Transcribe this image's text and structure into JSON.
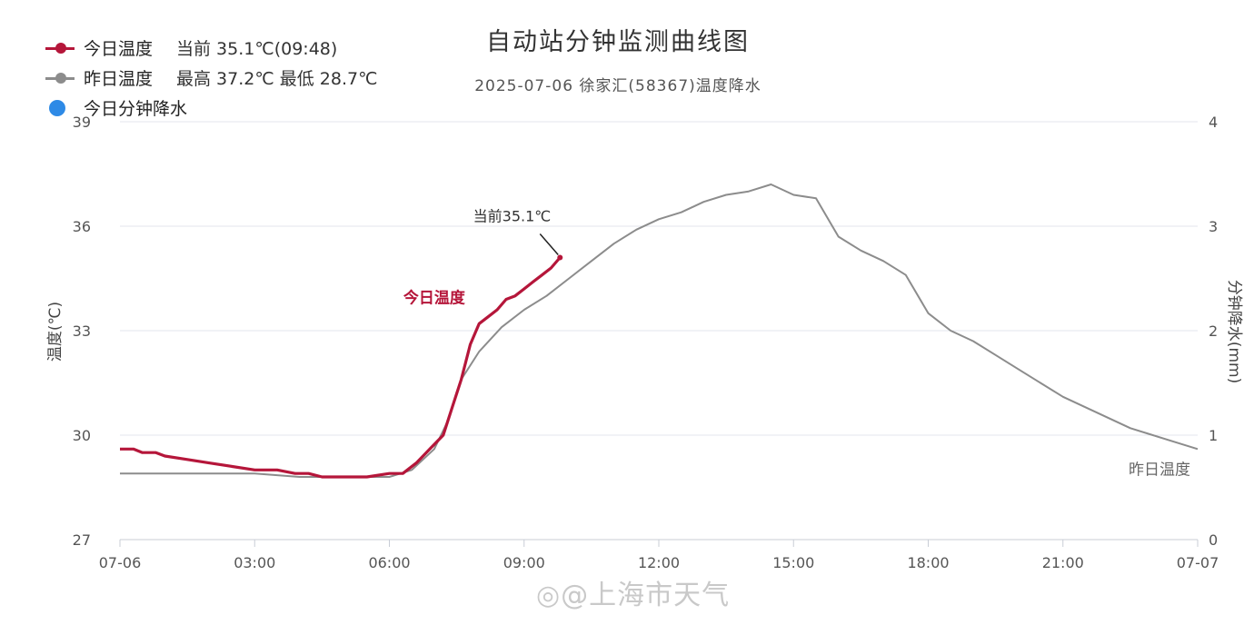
{
  "chart_data": {
    "type": "line",
    "title": "自动站分钟监测曲线图",
    "subtitle": "2025-07-06 徐家汇(58367)温度降水",
    "ylabel": "温度(℃)",
    "y2label": "分钟降水(mm)",
    "ylim": [
      27,
      39
    ],
    "y2lim": [
      0,
      4
    ],
    "yticks": [
      "27",
      "30",
      "33",
      "36",
      "39"
    ],
    "y2ticks": [
      "0",
      "1",
      "2",
      "3",
      "4"
    ],
    "xlim": [
      0,
      24
    ],
    "xticks": [
      {
        "value": 0,
        "label": "07-06"
      },
      {
        "value": 3,
        "label": "03:00"
      },
      {
        "value": 6,
        "label": "06:00"
      },
      {
        "value": 9,
        "label": "09:00"
      },
      {
        "value": 12,
        "label": "12:00"
      },
      {
        "value": 15,
        "label": "15:00"
      },
      {
        "value": 18,
        "label": "18:00"
      },
      {
        "value": 21,
        "label": "21:00"
      },
      {
        "value": 24,
        "label": "07-07"
      }
    ],
    "legend": [
      {
        "name": "今日温度",
        "extra": "当前 35.1℃(09:48)",
        "color": "#b5163a",
        "symbol": "line"
      },
      {
        "name": "昨日温度",
        "extra": "最高 37.2℃ 最低 28.7℃",
        "color": "#8c8c8c",
        "symbol": "line"
      },
      {
        "name": "今日分钟降水",
        "extra": "",
        "color": "#2e8ae6",
        "symbol": "dot"
      }
    ],
    "series": [
      {
        "name": "今日温度",
        "color": "#b5163a",
        "x": [
          0,
          0.3,
          0.5,
          0.8,
          1,
          1.5,
          2,
          2.5,
          3,
          3.5,
          3.9,
          4.2,
          4.5,
          5,
          5.5,
          6,
          6.3,
          6.6,
          6.9,
          7.2,
          7.4,
          7.6,
          7.8,
          8.0,
          8.2,
          8.4,
          8.6,
          8.8,
          9.0,
          9.2,
          9.4,
          9.6,
          9.8
        ],
        "y": [
          29.6,
          29.6,
          29.5,
          29.5,
          29.4,
          29.3,
          29.2,
          29.1,
          29.0,
          29.0,
          28.9,
          28.9,
          28.8,
          28.8,
          28.8,
          28.9,
          28.9,
          29.2,
          29.6,
          30.0,
          30.8,
          31.6,
          32.6,
          33.2,
          33.4,
          33.6,
          33.9,
          34.0,
          34.2,
          34.4,
          34.6,
          34.8,
          35.1
        ]
      },
      {
        "name": "昨日温度",
        "color": "#8c8c8c",
        "x": [
          0,
          1,
          2,
          3,
          4,
          5,
          6,
          6.5,
          7,
          7.3,
          7.6,
          8,
          8.5,
          9,
          9.5,
          10,
          10.5,
          11,
          11.5,
          12,
          12.5,
          13,
          13.5,
          14,
          14.5,
          15,
          15.5,
          16,
          16.5,
          17,
          17.5,
          18,
          18.5,
          19,
          19.5,
          20,
          20.5,
          21,
          21.5,
          22,
          22.5,
          23,
          23.5,
          24
        ],
        "y": [
          28.9,
          28.9,
          28.9,
          28.9,
          28.8,
          28.8,
          28.8,
          29.0,
          29.6,
          30.4,
          31.6,
          32.4,
          33.1,
          33.6,
          34.0,
          34.5,
          35.0,
          35.5,
          35.9,
          36.2,
          36.4,
          36.7,
          36.9,
          37.0,
          37.2,
          36.9,
          36.8,
          35.7,
          35.3,
          35.0,
          34.6,
          33.5,
          33.0,
          32.7,
          32.3,
          31.9,
          31.5,
          31.1,
          30.8,
          30.5,
          30.2,
          30.0,
          29.8,
          29.6
        ]
      }
    ],
    "annotations": [
      {
        "text": "当前35.1℃",
        "x": 9.8,
        "y": 35.1
      },
      {
        "text": "今日温度",
        "series": "今日温度"
      },
      {
        "text": "昨日温度",
        "series": "昨日温度"
      }
    ],
    "grid": true,
    "legend_position": "top-left"
  },
  "watermark": "◎@上海市天气"
}
